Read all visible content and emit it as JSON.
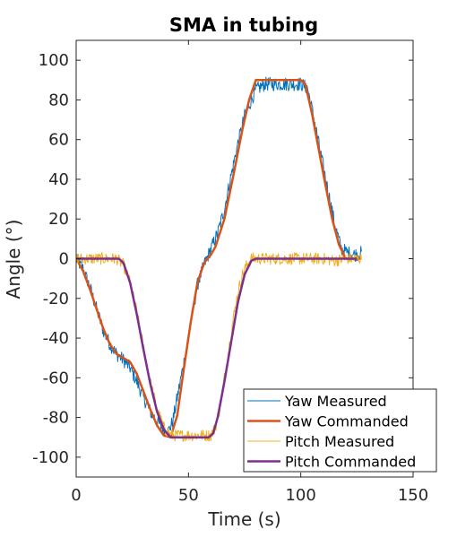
{
  "chart_data": {
    "type": "line",
    "title": "SMA in tubing",
    "xlabel": "Time (s)",
    "ylabel": "Angle (°)",
    "xlim": [
      0,
      150
    ],
    "ylim": [
      -110,
      110
    ],
    "xticks": [
      0,
      50,
      100,
      150
    ],
    "yticks": [
      -100,
      -80,
      -60,
      -40,
      -20,
      0,
      20,
      40,
      60,
      80,
      100
    ],
    "grid": false,
    "legend": "bottom-right",
    "series": [
      {
        "name": "Yaw Measured",
        "color": "#0072BD",
        "width": 1,
        "noise": 3.5,
        "x": [
          0,
          3,
          6,
          9,
          12,
          15,
          18,
          21,
          24,
          27,
          30,
          33,
          36,
          39,
          41,
          43,
          45,
          48,
          51,
          54,
          57,
          60,
          63,
          66,
          69,
          72,
          75,
          78,
          80,
          84,
          88,
          92,
          96,
          100,
          103,
          106,
          109,
          112,
          115,
          118,
          121,
          124,
          127
        ],
        "y": [
          0,
          -5,
          -14,
          -25,
          -36,
          -43,
          -48,
          -51,
          -55,
          -62,
          -70,
          -77,
          -82,
          -86,
          -87,
          -82,
          -70,
          -52,
          -33,
          -13,
          -3,
          5,
          13,
          25,
          42,
          58,
          72,
          80,
          85,
          88,
          88,
          88,
          88,
          88,
          86,
          70,
          52,
          35,
          18,
          5,
          3,
          2,
          3
        ]
      },
      {
        "name": "Yaw Commanded",
        "color": "#D95319",
        "width": 2.5,
        "noise": 0,
        "x": [
          0,
          3,
          6,
          9,
          12,
          15,
          18,
          21,
          24,
          27,
          30,
          33,
          36,
          39,
          42,
          45,
          48,
          51,
          54,
          57,
          60,
          62,
          66,
          70,
          74,
          77,
          80,
          100,
          102,
          105,
          108,
          111,
          114,
          117,
          120,
          127
        ],
        "y": [
          0,
          -6,
          -15,
          -25,
          -35,
          -43,
          -48,
          -50,
          -52,
          -58,
          -67,
          -76,
          -84,
          -89,
          -90,
          -79,
          -55,
          -32,
          -12,
          -2,
          2,
          6,
          20,
          42,
          65,
          80,
          90,
          90,
          88,
          73,
          55,
          37,
          20,
          7,
          0,
          0
        ]
      },
      {
        "name": "Pitch Measured",
        "color": "#EDB120",
        "width": 1,
        "noise": 3,
        "x": [
          0,
          18,
          21,
          24,
          27,
          30,
          33,
          36,
          39,
          42,
          45,
          50,
          55,
          60,
          62,
          64,
          66,
          68,
          70,
          72,
          74,
          76,
          78,
          80,
          90,
          100,
          110,
          115,
          120,
          127
        ],
        "y": [
          0,
          0,
          -3,
          -12,
          -27,
          -45,
          -62,
          -76,
          -85,
          -89,
          -89,
          -89,
          -89,
          -89,
          -85,
          -75,
          -60,
          -45,
          -30,
          -17,
          -8,
          -3,
          0,
          0,
          0,
          0,
          0,
          -1,
          0,
          0
        ]
      },
      {
        "name": "Pitch Commanded",
        "color": "#7E2F8E",
        "width": 2.5,
        "noise": 0,
        "x": [
          0,
          19,
          21,
          24,
          27,
          30,
          33,
          36,
          39,
          42,
          59,
          61,
          63,
          66,
          69,
          72,
          75,
          78,
          80,
          125
        ],
        "y": [
          0,
          0,
          -2,
          -12,
          -28,
          -46,
          -63,
          -77,
          -86,
          -90,
          -90,
          -88,
          -80,
          -62,
          -42,
          -22,
          -8,
          -1,
          0,
          0
        ]
      }
    ]
  }
}
